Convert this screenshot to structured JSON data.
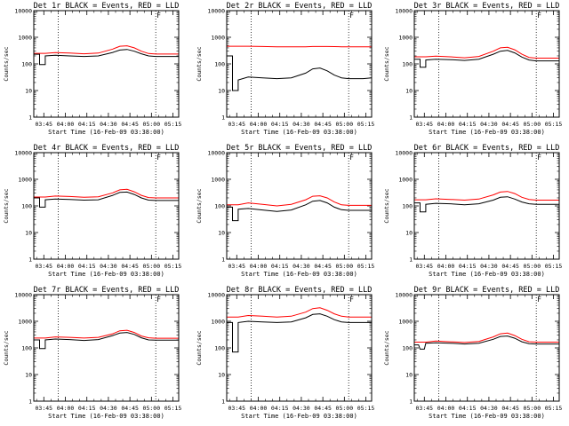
{
  "colors": {
    "events": "#000000",
    "lld": "#ff0000",
    "frame": "#000000",
    "background": "#ffffff"
  },
  "panel_titles": [
    "Det 1r BLACK = Events, RED = LLD",
    "Det 2r BLACK = Events, RED = LLD",
    "Det 3r BLACK = Events, RED = LLD",
    "Det 4r BLACK = Events, RED = LLD",
    "Det 5r BLACK = Events, RED = LLD",
    "Det 6r BLACK = Events, RED = LLD",
    "Det 7r BLACK = Events, RED = LLD",
    "Det 8r BLACK = Events, RED = LLD",
    "Det 9r BLACK = Events, RED = LLD"
  ],
  "ylabel": "Counts/sec",
  "xlabel": "Start Time (16-Feb-09 03:38:00)",
  "flag_label": "F",
  "chart_data": {
    "type": "line",
    "y_scale": "log",
    "ylim": [
      1,
      10000
    ],
    "y_ticks": [
      "1",
      "10",
      "100",
      "1000",
      "10000"
    ],
    "x_unit": "minutes since start time 03:38:00",
    "xlim": [
      0,
      101
    ],
    "x_ticks": [
      {
        "label": "03:45",
        "minute": 7
      },
      {
        "label": "04:00",
        "minute": 22
      },
      {
        "label": "04:15",
        "minute": 37
      },
      {
        "label": "04:30",
        "minute": 52
      },
      {
        "label": "04:45",
        "minute": 67
      },
      {
        "label": "05:00",
        "minute": 82
      },
      {
        "label": "05:15",
        "minute": 97
      }
    ],
    "vertical_markers_minutes": [
      17,
      85
    ],
    "flag_marker_minute": 85,
    "x": [
      0,
      3,
      4,
      7,
      8,
      15,
      25,
      35,
      45,
      55,
      60,
      65,
      70,
      75,
      80,
      85,
      90,
      95,
      101
    ],
    "panels": [
      {
        "detector": "1r",
        "series": [
          {
            "name": "Events",
            "values": [
              230,
              230,
              95,
              95,
              200,
              210,
              200,
              190,
              200,
              270,
              330,
              350,
              300,
              240,
              200,
              190,
              190,
              190,
              190
            ]
          },
          {
            "name": "LLD",
            "values": [
              250,
              250,
              250,
              250,
              250,
              265,
              255,
              240,
              255,
              360,
              460,
              480,
              400,
              300,
              245,
              235,
              235,
              235,
              235
            ]
          }
        ]
      },
      {
        "detector": "2r",
        "series": [
          {
            "name": "Events",
            "values": [
              200,
              200,
              10,
              10,
              25,
              32,
              30,
              28,
              30,
              45,
              65,
              70,
              55,
              38,
              30,
              28,
              28,
              28,
              30
            ]
          },
          {
            "name": "LLD",
            "values": [
              460,
              460,
              460,
              460,
              460,
              460,
              450,
              440,
              440,
              440,
              450,
              450,
              450,
              445,
              440,
              440,
              440,
              440,
              440
            ]
          }
        ]
      },
      {
        "detector": "3r",
        "series": [
          {
            "name": "Events",
            "values": [
              150,
              150,
              75,
              75,
              140,
              150,
              145,
              135,
              150,
              230,
              300,
              320,
              260,
              180,
              140,
              130,
              130,
              130,
              130
            ]
          },
          {
            "name": "LLD",
            "values": [
              185,
              185,
              185,
              185,
              185,
              195,
              185,
              170,
              190,
              300,
              400,
              420,
              340,
              230,
              175,
              165,
              165,
              165,
              165
            ]
          }
        ]
      },
      {
        "detector": "4r",
        "series": [
          {
            "name": "Events",
            "values": [
              200,
              200,
              90,
              90,
              170,
              180,
              175,
              165,
              170,
              250,
              320,
              330,
              270,
              200,
              165,
              160,
              160,
              160,
              160
            ]
          },
          {
            "name": "LLD",
            "values": [
              215,
              215,
              215,
              215,
              215,
              235,
              225,
              210,
              220,
              310,
              400,
              420,
              340,
              250,
              205,
              200,
              200,
              200,
              200
            ]
          }
        ]
      },
      {
        "detector": "5r",
        "series": [
          {
            "name": "Events",
            "values": [
              90,
              90,
              28,
              28,
              75,
              80,
              70,
              62,
              70,
              110,
              150,
              160,
              130,
              90,
              72,
              68,
              68,
              68,
              68
            ]
          },
          {
            "name": "LLD",
            "values": [
              110,
              110,
              110,
              110,
              110,
              130,
              115,
              100,
              115,
              170,
              230,
              240,
              200,
              140,
              110,
              105,
              105,
              105,
              105
            ]
          }
        ]
      },
      {
        "detector": "6r",
        "series": [
          {
            "name": "Events",
            "values": [
              130,
              130,
              60,
              60,
              115,
              125,
              120,
              110,
              120,
              165,
              210,
              220,
              180,
              140,
              120,
              115,
              115,
              115,
              115
            ]
          },
          {
            "name": "LLD",
            "values": [
              170,
              170,
              170,
              170,
              170,
              185,
              175,
              165,
              180,
              260,
              330,
              350,
              290,
              210,
              175,
              165,
              165,
              165,
              165
            ]
          }
        ]
      },
      {
        "detector": "7r",
        "series": [
          {
            "name": "Events",
            "values": [
              200,
              200,
              95,
              95,
              200,
              215,
              205,
              190,
              205,
              290,
              360,
              380,
              320,
              240,
              200,
              195,
              195,
              195,
              195
            ]
          },
          {
            "name": "LLD",
            "values": [
              235,
              235,
              235,
              235,
              235,
              260,
              250,
              235,
              250,
              340,
              440,
              460,
              380,
              280,
              240,
              230,
              230,
              230,
              230
            ]
          }
        ]
      },
      {
        "detector": "8r",
        "series": [
          {
            "name": "Events",
            "values": [
              900,
              900,
              70,
              70,
              900,
              1000,
              950,
              900,
              950,
              1350,
              1800,
              1900,
              1550,
              1150,
              950,
              900,
              900,
              900,
              900
            ]
          },
          {
            "name": "LLD",
            "values": [
              1450,
              1450,
              1450,
              1450,
              1450,
              1650,
              1550,
              1450,
              1550,
              2200,
              3000,
              3200,
              2600,
              1900,
              1550,
              1450,
              1450,
              1450,
              1450
            ]
          }
        ]
      },
      {
        "detector": "9r",
        "series": [
          {
            "name": "Events",
            "values": [
              130,
              130,
              90,
              90,
              150,
              155,
              150,
              140,
              150,
              210,
              270,
              280,
              230,
              170,
              145,
              140,
              140,
              140,
              140
            ]
          },
          {
            "name": "LLD",
            "values": [
              165,
              165,
              165,
              165,
              165,
              180,
              170,
              160,
              175,
              260,
              340,
              360,
              290,
              210,
              170,
              165,
              165,
              165,
              165
            ]
          }
        ]
      }
    ]
  }
}
